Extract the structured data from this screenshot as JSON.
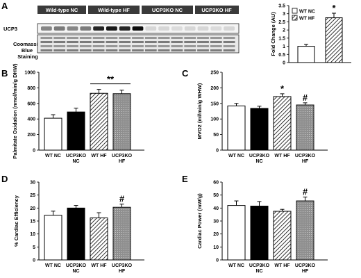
{
  "panels": [
    {
      "id": "A",
      "letter": "A"
    },
    {
      "id": "B",
      "letter": "B"
    },
    {
      "id": "C",
      "letter": "C"
    },
    {
      "id": "D",
      "letter": "D"
    },
    {
      "id": "E",
      "letter": "E"
    }
  ],
  "blot": {
    "group_labels": [
      "Wild-type NC",
      "Wild-type HF",
      "UCP3KO NC",
      "UCP3KO HF"
    ],
    "row_labels": [
      "UCP3",
      "Coomassie Blue Staining"
    ]
  },
  "colors": {
    "wt_nc": "#ffffff",
    "ucp3ko_nc": "#000000",
    "wt_hf": "hatched",
    "ucp3ko_hf": "#999999 dotted"
  },
  "chart_data": [
    {
      "id": "A",
      "type": "bar",
      "categories": [
        "WT NC",
        "WT HF"
      ],
      "values": [
        1.0,
        2.75
      ],
      "errors": [
        0.12,
        0.28
      ],
      "ylabel": "Fold Change (AU)",
      "ylim": [
        0,
        3.5
      ],
      "yticks": [
        "0",
        "0.5",
        "1",
        "1.5",
        "2",
        "2.5",
        "3",
        "3.5"
      ],
      "legend": [
        "WT NC",
        "WT HF"
      ],
      "legend_position": "top-left",
      "annotations": [
        {
          "bar": 1,
          "text": "*"
        }
      ]
    },
    {
      "id": "B",
      "type": "bar",
      "categories": [
        "WT NC",
        "UCP3KO NC",
        "WT HF",
        "UCP3KO HF"
      ],
      "values": [
        410,
        490,
        730,
        725
      ],
      "errors": [
        45,
        50,
        50,
        45
      ],
      "ylabel": "Palmitate Oxidation (nmol/min/g DHW)",
      "ylim": [
        0,
        1000
      ],
      "yticks": [
        "0",
        "200",
        "400",
        "600",
        "800",
        "1000"
      ],
      "annotations": [
        {
          "bracket": [
            2,
            3
          ],
          "text": "**"
        }
      ]
    },
    {
      "id": "C",
      "type": "bar",
      "categories": [
        "WT NC",
        "UCP3KO NC",
        "WT HF",
        "UCP3KO HF"
      ],
      "values": [
        142,
        134,
        172,
        145
      ],
      "errors": [
        8,
        7,
        9,
        7
      ],
      "ylabel": "MVO2 (ml/min/g WHW)",
      "ylim": [
        0,
        250
      ],
      "yticks": [
        "0",
        "50",
        "100",
        "150",
        "200",
        "250"
      ],
      "annotations": [
        {
          "bar": 2,
          "text": "*"
        },
        {
          "bar": 3,
          "text": "#"
        }
      ]
    },
    {
      "id": "D",
      "type": "bar",
      "categories": [
        "WT NC",
        "UCP3KO NC",
        "WT HF",
        "UCP3KO HF"
      ],
      "values": [
        17.2,
        20.0,
        16.2,
        20.3
      ],
      "errors": [
        1.6,
        1.0,
        2.0,
        1.2
      ],
      "ylabel": "% Cardiac Efficiency",
      "ylim": [
        0,
        30
      ],
      "yticks": [
        "0",
        "5",
        "10",
        "15",
        "20",
        "25",
        "30"
      ],
      "annotations": [
        {
          "bar": 3,
          "text": "#"
        }
      ]
    },
    {
      "id": "E",
      "type": "bar",
      "categories": [
        "WT NC",
        "UCP3KO NC",
        "WT HF",
        "UCP3KO HF"
      ],
      "values": [
        42,
        41.5,
        37.5,
        45.5
      ],
      "errors": [
        3.5,
        3.5,
        1.5,
        3.0
      ],
      "ylabel": "Cardiac Power (mW/g)",
      "ylim": [
        0,
        60
      ],
      "yticks": [
        "0",
        "10",
        "20",
        "30",
        "40",
        "50",
        "60"
      ],
      "annotations": [
        {
          "bar": 3,
          "text": "#"
        }
      ]
    }
  ]
}
